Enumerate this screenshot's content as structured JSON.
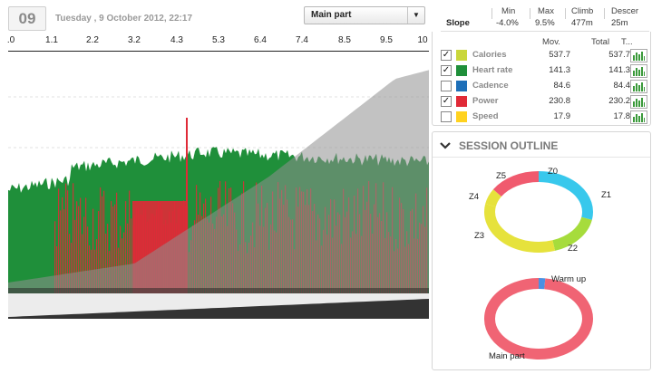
{
  "header": {
    "day": "09",
    "date": "Tuesday , 9 October  2012, 22:17",
    "segment_select": "Main part"
  },
  "x_axis": {
    "ticks": [
      ".0",
      "1.1",
      "2.2",
      "3.2",
      "4.3",
      "5.3",
      "6.4",
      "7.4",
      "8.5",
      "9.5",
      "10"
    ]
  },
  "summary": {
    "headers": [
      "Min",
      "Max",
      "Climb",
      "Descer"
    ],
    "row_label": "Slope",
    "values": [
      "-4.0%",
      "9.5%",
      "477m",
      "25m"
    ]
  },
  "metrics": {
    "headers": {
      "mov": "Mov.",
      "total": "Total",
      "trend": "T..."
    },
    "rows": [
      {
        "name": "Calories",
        "color": "#c9d63a",
        "checked": true,
        "mov": "537.7",
        "total": "537.7"
      },
      {
        "name": "Heart rate",
        "color": "#1f8f3a",
        "checked": true,
        "mov": "141.3",
        "total": "141.3"
      },
      {
        "name": "Cadence",
        "color": "#1e6fb8",
        "checked": false,
        "mov": "84.6",
        "total": "84.4"
      },
      {
        "name": "Power",
        "color": "#e02a37",
        "checked": true,
        "mov": "230.8",
        "total": "230.2"
      },
      {
        "name": "Speed",
        "color": "#ffd21f",
        "checked": false,
        "mov": "17.9",
        "total": "17.8"
      }
    ]
  },
  "session_outline": {
    "title": "SESSION OUTLINE",
    "zones": {
      "labels": [
        "Z0",
        "Z1",
        "Z2",
        "Z3",
        "Z4",
        "Z5"
      ],
      "colors": [
        "#38c8ec",
        "#38c8ec",
        "#a6dc3c",
        "#e6e23c",
        "#e6e23c",
        "#f05a6e"
      ],
      "fractions": [
        0.0,
        0.28,
        0.17,
        0.33,
        0.06,
        0.16
      ]
    },
    "parts": {
      "labels": [
        "Warm up",
        "Main part"
      ],
      "colors": [
        "#4a90e2",
        "#f06474"
      ],
      "fractions": [
        0.02,
        0.98
      ]
    }
  },
  "chart_data": {
    "type": "area",
    "x_range": [
      0,
      10
    ],
    "series": [
      {
        "color": "#8f8f8f"
      },
      {
        "color": "#1f8f3a"
      },
      {
        "color": "#e02a37"
      }
    ]
  }
}
